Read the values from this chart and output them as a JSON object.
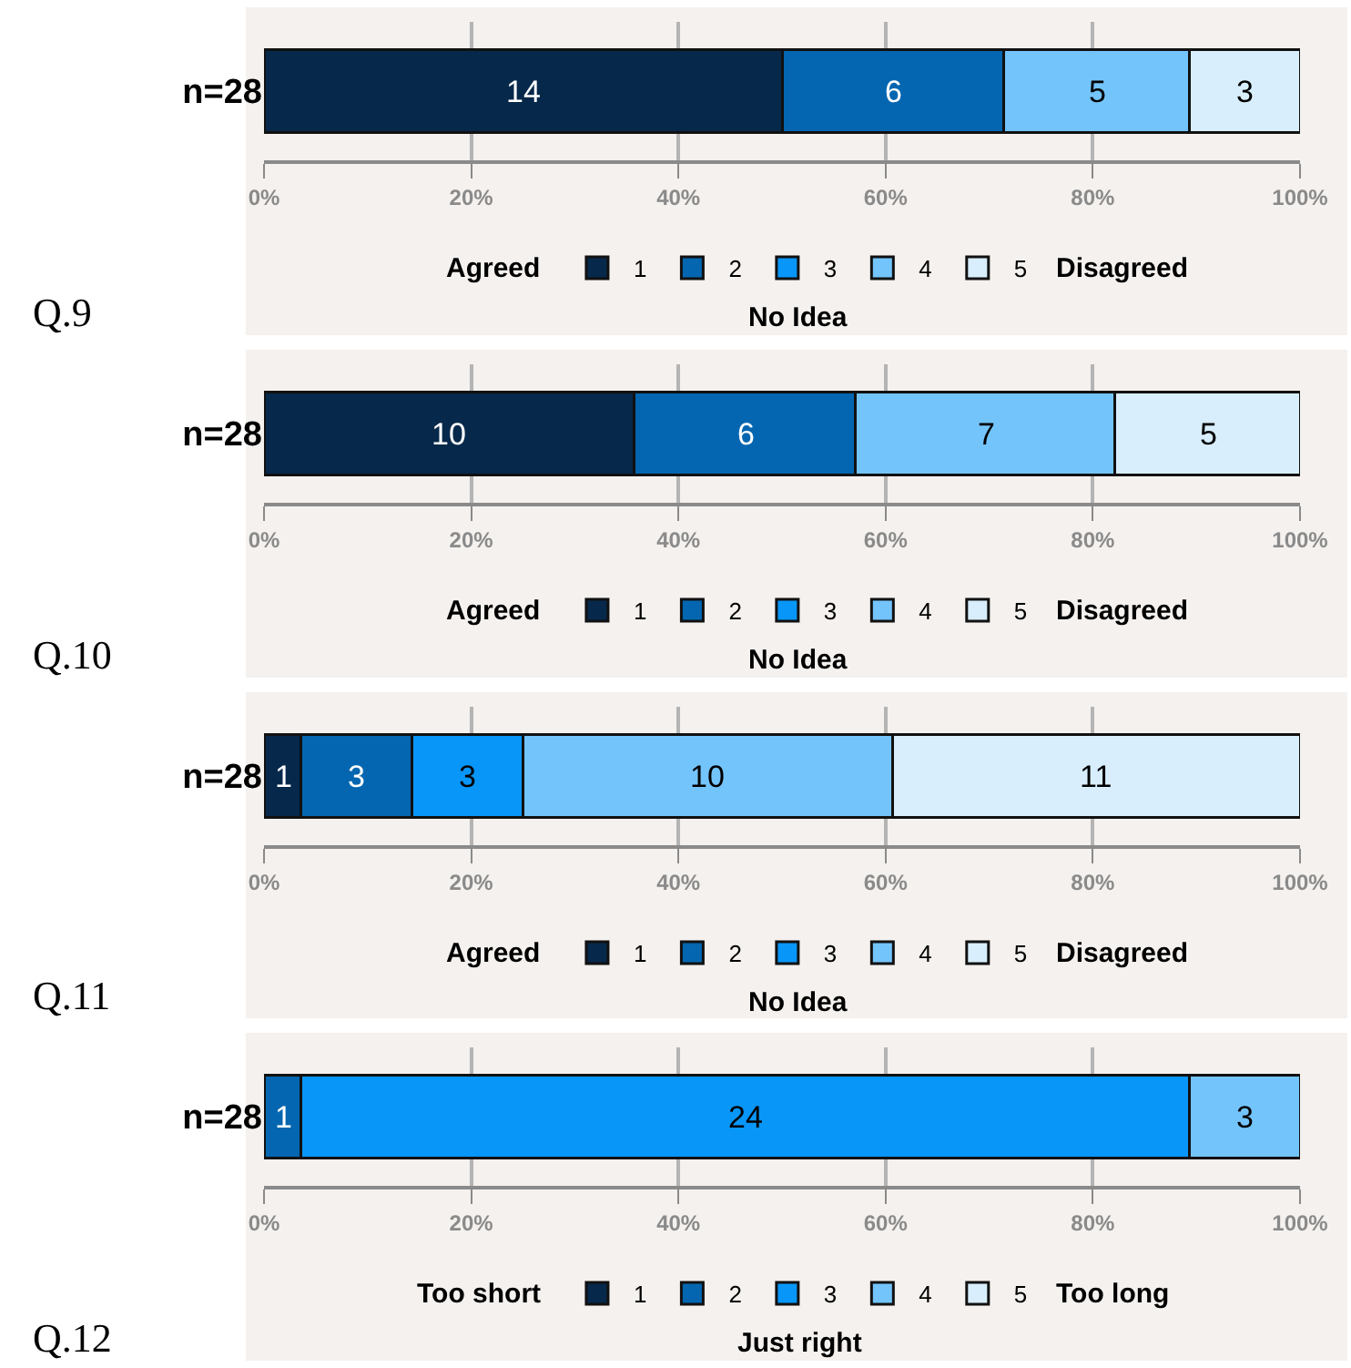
{
  "chart_data": [
    {
      "type": "bar",
      "orientation": "horizontal",
      "stacked": true,
      "title": "Q.9",
      "categories": [
        "n=28"
      ],
      "series": [
        {
          "name": "1",
          "color": "#06284a",
          "values": [
            50
          ]
        },
        {
          "name": "2",
          "color": "#0466b0",
          "values": [
            21.4
          ]
        },
        {
          "name": "3",
          "color": "#0896f8",
          "values": [
            null
          ]
        },
        {
          "name": "4",
          "color": "#74c4fc",
          "values": [
            17.9
          ]
        },
        {
          "name": "5",
          "color": "#d8eefc",
          "values": [
            10.7
          ]
        }
      ],
      "xlim": [
        0,
        100
      ],
      "xticks": [
        {
          "value": 0,
          "label": "0%"
        },
        {
          "value": 20,
          "label": "20%"
        },
        {
          "value": 40,
          "label": "40%"
        },
        {
          "value": 60,
          "label": "60%"
        },
        {
          "value": 80,
          "label": "80%"
        },
        {
          "value": 100,
          "label": "100%"
        }
      ],
      "grid": "x",
      "legend": "bottom",
      "annotations": [
        "Agreed",
        "No Idea",
        "Disagreed",
        "14",
        "6",
        "5",
        "3"
      ]
    },
    {
      "type": "bar",
      "orientation": "horizontal",
      "stacked": true,
      "title": "Q.10",
      "categories": [
        "n=28"
      ],
      "series": [
        {
          "name": "1",
          "color": "#06284a",
          "values": [
            35.7
          ]
        },
        {
          "name": "2",
          "color": "#0466b0",
          "values": [
            21.4
          ]
        },
        {
          "name": "3",
          "color": "#0896f8",
          "values": [
            null
          ]
        },
        {
          "name": "4",
          "color": "#74c4fc",
          "values": [
            25
          ]
        },
        {
          "name": "5",
          "color": "#d8eefc",
          "values": [
            17.9
          ]
        }
      ],
      "xlim": [
        0,
        100
      ],
      "xticks": [
        {
          "value": 0,
          "label": "0%"
        },
        {
          "value": 20,
          "label": "20%"
        },
        {
          "value": 40,
          "label": "40%"
        },
        {
          "value": 60,
          "label": "60%"
        },
        {
          "value": 80,
          "label": "80%"
        },
        {
          "value": 100,
          "label": "100%"
        }
      ],
      "grid": "x",
      "legend": "bottom",
      "annotations": [
        "Agreed",
        "No Idea",
        "Disagreed",
        "10",
        "6",
        "7",
        "5"
      ]
    },
    {
      "type": "bar",
      "orientation": "horizontal",
      "stacked": true,
      "title": "Q.11",
      "categories": [
        "n=28"
      ],
      "series": [
        {
          "name": "1",
          "color": "#06284a",
          "values": [
            3.6
          ]
        },
        {
          "name": "2",
          "color": "#0466b0",
          "values": [
            10.7
          ]
        },
        {
          "name": "3",
          "color": "#0896f8",
          "values": [
            10.7
          ]
        },
        {
          "name": "4",
          "color": "#74c4fc",
          "values": [
            35.7
          ]
        },
        {
          "name": "5",
          "color": "#d8eefc",
          "values": [
            39.3
          ]
        }
      ],
      "xlim": [
        0,
        100
      ],
      "xticks": [
        {
          "value": 0,
          "label": "0%"
        },
        {
          "value": 20,
          "label": "20%"
        },
        {
          "value": 40,
          "label": "40%"
        },
        {
          "value": 60,
          "label": "60%"
        },
        {
          "value": 80,
          "label": "80%"
        },
        {
          "value": 100,
          "label": "100%"
        }
      ],
      "grid": "x",
      "legend": "bottom",
      "annotations": [
        "Agreed",
        "No Idea",
        "Disagreed",
        "1",
        "3",
        "3",
        "10",
        "11"
      ]
    },
    {
      "type": "bar",
      "orientation": "horizontal",
      "stacked": true,
      "title": "Q.12",
      "categories": [
        "n=28"
      ],
      "series": [
        {
          "name": "1",
          "color": "#06284a",
          "values": [
            null
          ]
        },
        {
          "name": "2",
          "color": "#0466b0",
          "values": [
            3.6
          ]
        },
        {
          "name": "3",
          "color": "#0896f8",
          "values": [
            85.7
          ]
        },
        {
          "name": "4",
          "color": "#74c4fc",
          "values": [
            10.7
          ]
        },
        {
          "name": "5",
          "color": "#d8eefc",
          "values": [
            null
          ]
        }
      ],
      "xlim": [
        0,
        100
      ],
      "xticks": [
        {
          "value": 0,
          "label": "0%"
        },
        {
          "value": 20,
          "label": "20%"
        },
        {
          "value": 40,
          "label": "40%"
        },
        {
          "value": 60,
          "label": "60%"
        },
        {
          "value": 80,
          "label": "80%"
        },
        {
          "value": 100,
          "label": "100%"
        }
      ],
      "grid": "x",
      "legend": "bottom",
      "annotations": [
        "Too short",
        "Just right",
        "Too long",
        "1",
        "24",
        "3"
      ]
    }
  ]
}
